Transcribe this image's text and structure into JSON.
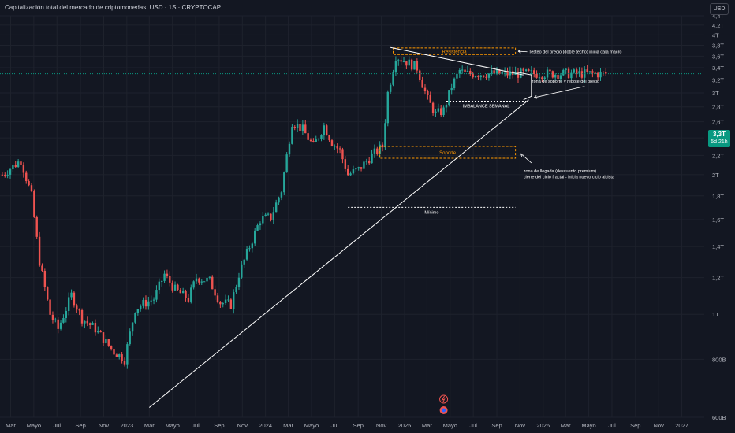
{
  "header": {
    "title": "Capitalización total del mercado de criptomonedas, USD · 1S · CRYPTOCAP",
    "currency_button": "USD"
  },
  "price_badge": {
    "price": "3,3T",
    "countdown": "5d 21h"
  },
  "colors": {
    "background": "#131722",
    "up": "#26a69a",
    "down": "#ef5350",
    "price_line": "#089981",
    "zone": "#ff9800",
    "trend": "#ffffff"
  },
  "chart_data": {
    "type": "candlestick",
    "y_scale": "log",
    "y_unit": "T USD",
    "ylim": [
      0.6,
      4.4
    ],
    "x_range": [
      "2022-02-01",
      "2027-03-01"
    ],
    "y_tick_labels": [
      "4,4T",
      "4,2T",
      "4T",
      "3,8T",
      "3,6T",
      "3,4T",
      "3,2T",
      "3T",
      "2,8T",
      "2,6T",
      "2,4T",
      "2,2T",
      "2T",
      "1,8T",
      "1,6T",
      "1,4T",
      "1,2T",
      "1T",
      "800B",
      "600B"
    ],
    "y_tick_values": [
      4.4,
      4.2,
      4.0,
      3.8,
      3.6,
      3.4,
      3.2,
      3.0,
      2.8,
      2.6,
      2.4,
      2.2,
      2.0,
      1.8,
      1.6,
      1.4,
      1.2,
      1.0,
      0.8,
      0.6
    ],
    "x_tick_labels": [
      "Mar",
      "Mayo",
      "Jul",
      "Sep",
      "Nov",
      "2023",
      "Mar",
      "Mayo",
      "Jul",
      "Sep",
      "Nov",
      "2024",
      "Mar",
      "Mayo",
      "Jul",
      "Sep",
      "Nov",
      "2025",
      "Mar",
      "Mayo",
      "Jul",
      "Sep",
      "Nov",
      "2026",
      "Mar",
      "Mayo",
      "Jul",
      "Sep",
      "Nov",
      "2027"
    ],
    "x_tick_dates": [
      "2022-03-01",
      "2022-05-01",
      "2022-07-01",
      "2022-09-01",
      "2022-11-01",
      "2023-01-01",
      "2023-03-01",
      "2023-05-01",
      "2023-07-01",
      "2023-09-01",
      "2023-11-01",
      "2024-01-01",
      "2024-03-01",
      "2024-05-01",
      "2024-07-01",
      "2024-09-01",
      "2024-11-01",
      "2025-01-01",
      "2025-03-01",
      "2025-05-01",
      "2025-07-01",
      "2025-09-01",
      "2025-11-01",
      "2026-01-01",
      "2026-03-01",
      "2026-05-01",
      "2026-07-01",
      "2026-09-01",
      "2026-11-01",
      "2027-01-01"
    ],
    "price_path": [
      [
        "2022-02-07",
        2.0
      ],
      [
        "2022-03-28",
        2.15
      ],
      [
        "2022-04-25",
        1.8
      ],
      [
        "2022-05-16",
        1.3
      ],
      [
        "2022-06-13",
        1.0
      ],
      [
        "2022-07-04",
        0.93
      ],
      [
        "2022-08-08",
        1.1
      ],
      [
        "2022-09-05",
        0.98
      ],
      [
        "2022-10-10",
        0.93
      ],
      [
        "2022-11-07",
        0.87
      ],
      [
        "2022-11-28",
        0.83
      ],
      [
        "2022-12-26",
        0.8
      ],
      [
        "2023-01-23",
        1.03
      ],
      [
        "2023-02-20",
        1.06
      ],
      [
        "2023-03-13",
        1.08
      ],
      [
        "2023-04-10",
        1.22
      ],
      [
        "2023-05-08",
        1.13
      ],
      [
        "2023-06-12",
        1.08
      ],
      [
        "2023-07-03",
        1.2
      ],
      [
        "2023-08-07",
        1.18
      ],
      [
        "2023-09-04",
        1.06
      ],
      [
        "2023-10-02",
        1.05
      ],
      [
        "2023-10-23",
        1.22
      ],
      [
        "2023-11-20",
        1.4
      ],
      [
        "2023-12-18",
        1.6
      ],
      [
        "2024-01-15",
        1.62
      ],
      [
        "2024-02-12",
        1.85
      ],
      [
        "2024-03-11",
        2.6
      ],
      [
        "2024-04-08",
        2.5
      ],
      [
        "2024-05-06",
        2.3
      ],
      [
        "2024-06-03",
        2.55
      ],
      [
        "2024-06-24",
        2.35
      ],
      [
        "2024-07-15",
        2.25
      ],
      [
        "2024-08-05",
        2.0
      ],
      [
        "2024-09-02",
        2.05
      ],
      [
        "2024-10-07",
        2.2
      ],
      [
        "2024-11-04",
        2.3
      ],
      [
        "2024-11-18",
        3.0
      ],
      [
        "2024-12-09",
        3.6
      ],
      [
        "2025-01-06",
        3.5
      ],
      [
        "2025-02-03",
        3.4
      ],
      [
        "2025-03-03",
        2.9
      ],
      [
        "2025-03-24",
        2.7
      ],
      [
        "2025-04-14",
        2.75
      ],
      [
        "2025-05-05",
        3.1
      ],
      [
        "2025-05-26",
        3.35
      ],
      [
        "2025-06-09",
        3.3
      ]
    ],
    "candle_count": 228,
    "annotations": [
      {
        "type": "zone",
        "label": "Resistencia",
        "from": "2024-12-02",
        "to": "2025-10-20",
        "y_low": 3.63,
        "y_high": 3.75
      },
      {
        "type": "zone",
        "label": "Soporte",
        "from": "2024-10-28",
        "to": "2025-10-20",
        "y_low": 2.17,
        "y_high": 2.3
      },
      {
        "type": "level",
        "label": "IMBALANCE SEMANAL",
        "from": "2025-04-21",
        "to": "2025-11-17",
        "y": 2.88
      },
      {
        "type": "level",
        "label": "Mínimo",
        "from": "2024-08-05",
        "to": "2025-10-20",
        "y": 1.7
      },
      {
        "type": "trendline",
        "from": [
          "2023-03-01",
          0.63
        ],
        "to": [
          "2025-11-24",
          2.9
        ]
      },
      {
        "type": "trendline",
        "from": [
          "2024-11-25",
          3.76
        ],
        "to": [
          "2025-11-10",
          3.28
        ]
      },
      {
        "type": "note",
        "text": "Testeo del precio (doble techo) inicia caía macro",
        "date": "2025-11-24",
        "y": 3.68
      },
      {
        "type": "note",
        "text": "zona de soporte y rebote del precio",
        "date": "2025-12-01",
        "y": 3.18
      },
      {
        "type": "note",
        "text": "zona de llegada (descuento premium)",
        "date": "2025-11-10",
        "y": 2.04
      },
      {
        "type": "note",
        "text": "cierre del ciclo fractal - inicia nuevo ciclo alcista",
        "date": "2025-11-10",
        "y": 1.98
      }
    ],
    "current_price": 3.3
  }
}
